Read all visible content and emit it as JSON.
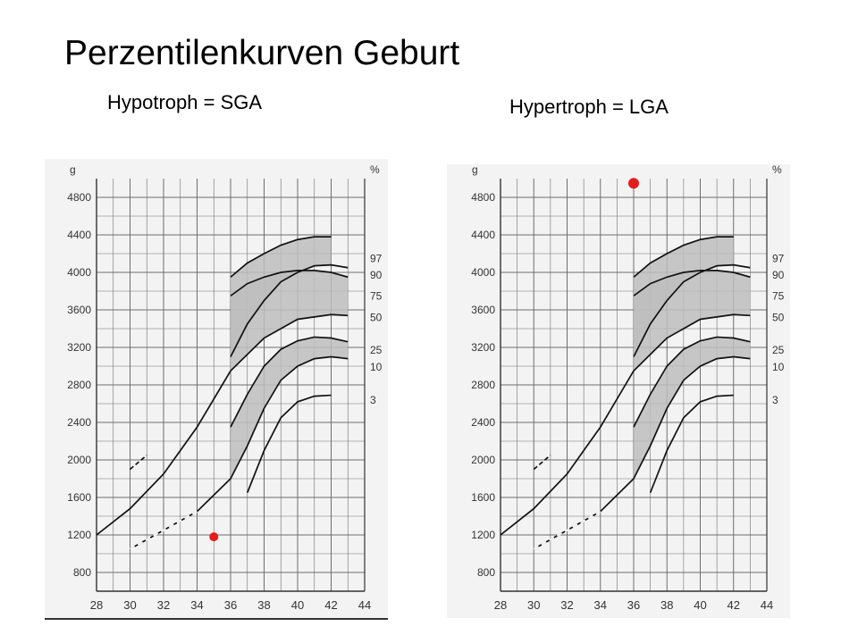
{
  "title": "Perzentilenkurven Geburt",
  "subtitles": {
    "left": "Hypotroph = SGA",
    "right": "Hypertroph = LGA"
  },
  "colors": {
    "marker": "#e51c1c",
    "band_fill": "#bdbdbd",
    "grid": "#6e6e6e",
    "chart_bg": "#f3f3f3"
  },
  "chart_data": [
    {
      "type": "line",
      "y_unit_label": "g",
      "percent_label": "%",
      "xlim": [
        28,
        44
      ],
      "ylim": [
        600,
        5000
      ],
      "x_ticks": [
        "28",
        "30",
        "32",
        "34",
        "36",
        "38",
        "40",
        "42",
        "44"
      ],
      "y_ticks": [
        "800",
        "1200",
        "1600",
        "2000",
        "2400",
        "2800",
        "3200",
        "3600",
        "4000",
        "4400",
        "4800"
      ],
      "percentile_labels": [
        "97",
        "90",
        "75",
        "50",
        "25",
        "10",
        "3"
      ],
      "series": [
        {
          "name": "97",
          "x": [
            36,
            37,
            38,
            39,
            40,
            41,
            42
          ],
          "y": [
            3950,
            4100,
            4200,
            4290,
            4350,
            4380,
            4380
          ]
        },
        {
          "name": "90",
          "x": [
            36,
            37,
            38,
            39,
            40,
            41,
            42,
            43
          ],
          "y": [
            3100,
            3450,
            3700,
            3900,
            4000,
            4070,
            4080,
            4050
          ]
        },
        {
          "name": "75",
          "x": [
            36,
            37,
            38,
            39,
            40,
            41,
            42,
            43
          ],
          "y": [
            3750,
            3880,
            3950,
            4000,
            4020,
            4020,
            4000,
            3950
          ]
        },
        {
          "name": "50",
          "x": [
            28,
            30,
            32,
            34,
            36,
            38,
            40,
            42,
            43
          ],
          "y": [
            1200,
            1480,
            1850,
            2350,
            2950,
            3300,
            3500,
            3550,
            3540
          ]
        },
        {
          "name": "25",
          "x": [
            36,
            37,
            38,
            39,
            40,
            41,
            42,
            43
          ],
          "y": [
            2350,
            2700,
            3000,
            3180,
            3270,
            3310,
            3300,
            3260
          ]
        },
        {
          "name": "10",
          "x": [
            30,
            32,
            34,
            36,
            37,
            38,
            39,
            40,
            41,
            42,
            43
          ],
          "y": [
            1050,
            1250,
            1450,
            1800,
            2150,
            2550,
            2850,
            3000,
            3080,
            3100,
            3080
          ]
        },
        {
          "name": "3",
          "x": [
            37,
            38,
            39,
            40,
            41,
            42
          ],
          "y": [
            1650,
            2100,
            2450,
            2620,
            2680,
            2690
          ]
        },
        {
          "name": "early-upper-dashed",
          "x": [
            30,
            31
          ],
          "y": [
            1900,
            2050
          ]
        }
      ],
      "marker": {
        "x": 35,
        "y": 1180
      }
    },
    {
      "type": "line",
      "y_unit_label": "g",
      "percent_label": "%",
      "xlim": [
        28,
        44
      ],
      "ylim": [
        600,
        5000
      ],
      "x_ticks": [
        "28",
        "30",
        "32",
        "34",
        "36",
        "38",
        "40",
        "42",
        "44"
      ],
      "y_ticks": [
        "800",
        "1200",
        "1600",
        "2000",
        "2400",
        "2800",
        "3200",
        "3600",
        "4000",
        "4400",
        "4800"
      ],
      "percentile_labels": [
        "97",
        "90",
        "75",
        "50",
        "25",
        "10",
        "3"
      ],
      "series": [
        {
          "name": "97",
          "x": [
            36,
            37,
            38,
            39,
            40,
            41,
            42
          ],
          "y": [
            3950,
            4100,
            4200,
            4290,
            4350,
            4380,
            4380
          ]
        },
        {
          "name": "90",
          "x": [
            36,
            37,
            38,
            39,
            40,
            41,
            42,
            43
          ],
          "y": [
            3100,
            3450,
            3700,
            3900,
            4000,
            4070,
            4080,
            4050
          ]
        },
        {
          "name": "75",
          "x": [
            36,
            37,
            38,
            39,
            40,
            41,
            42,
            43
          ],
          "y": [
            3750,
            3880,
            3950,
            4000,
            4020,
            4020,
            4000,
            3950
          ]
        },
        {
          "name": "50",
          "x": [
            28,
            30,
            32,
            34,
            36,
            38,
            40,
            42,
            43
          ],
          "y": [
            1200,
            1480,
            1850,
            2350,
            2950,
            3300,
            3500,
            3550,
            3540
          ]
        },
        {
          "name": "25",
          "x": [
            36,
            37,
            38,
            39,
            40,
            41,
            42,
            43
          ],
          "y": [
            2350,
            2700,
            3000,
            3180,
            3270,
            3310,
            3300,
            3260
          ]
        },
        {
          "name": "10",
          "x": [
            30,
            32,
            34,
            36,
            37,
            38,
            39,
            40,
            41,
            42,
            43
          ],
          "y": [
            1050,
            1250,
            1450,
            1800,
            2150,
            2550,
            2850,
            3000,
            3080,
            3100,
            3080
          ]
        },
        {
          "name": "3",
          "x": [
            37,
            38,
            39,
            40,
            41,
            42
          ],
          "y": [
            1650,
            2100,
            2450,
            2620,
            2680,
            2690
          ]
        },
        {
          "name": "early-upper-dashed",
          "x": [
            30,
            31
          ],
          "y": [
            1900,
            2050
          ]
        }
      ],
      "marker": {
        "x": 36,
        "y": 4950
      }
    }
  ]
}
